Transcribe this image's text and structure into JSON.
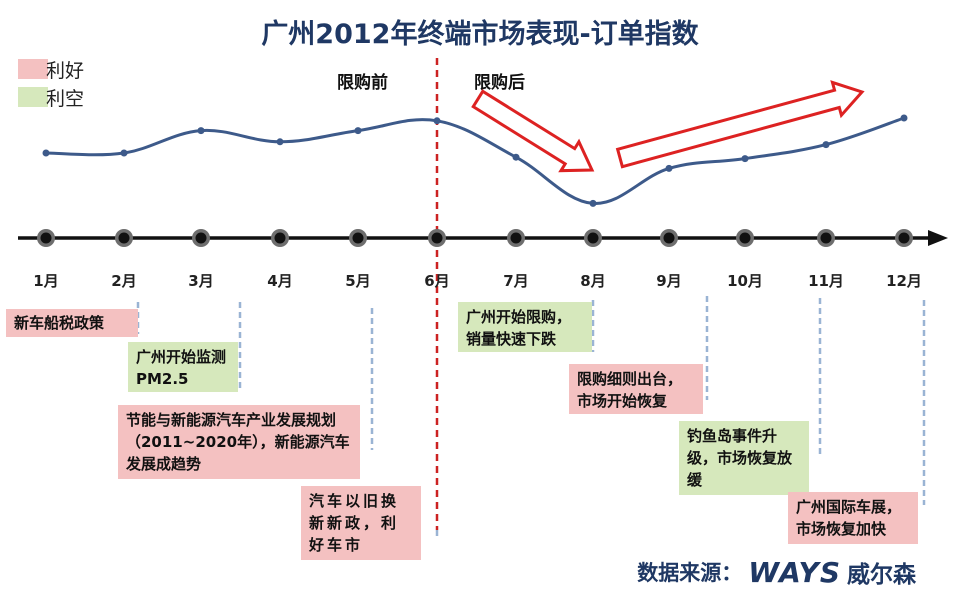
{
  "title": "广州2012年终端市场表现-订单指数",
  "legend": [
    {
      "label": "利好",
      "color": "#f4c1c1"
    },
    {
      "label": "利空",
      "color": "#d6e8bc"
    }
  ],
  "phase_labels": {
    "before": "限购前",
    "after": "限购后"
  },
  "chart_data": {
    "type": "line",
    "title": "广州2012年终端市场表现-订单指数",
    "categories": [
      "1月",
      "2月",
      "3月",
      "4月",
      "5月",
      "6月",
      "7月",
      "8月",
      "9月",
      "10月",
      "11月",
      "12月"
    ],
    "series": [
      {
        "values": [
          55,
          55,
          71,
          63,
          71,
          78,
          52,
          19,
          44,
          51,
          61,
          80
        ]
      }
    ],
    "ylim": [
      0,
      100
    ],
    "divider_after": "6月",
    "grid": false,
    "colors": {
      "line": "#3d5a8a",
      "divider": "#cc2222",
      "axis": "#111111",
      "arrow": "#dd2222",
      "leader": "#9ab4d4"
    }
  },
  "events": [
    {
      "text": "新车船税政策",
      "type": "good"
    },
    {
      "text": "广州开始监测PM2.5",
      "type": "bad"
    },
    {
      "text": "节能与新能源汽车产业发展规划（2011~2020年），新能源汽车发展成趋势",
      "type": "good"
    },
    {
      "text": "汽车以旧换新新政，利好车市",
      "type": "good"
    },
    {
      "text": "广州开始限购，销量快速下跌",
      "type": "bad"
    },
    {
      "text": "限购细则出台，市场开始恢复",
      "type": "good"
    },
    {
      "text": "钓鱼岛事件升级，市场恢复放缓",
      "type": "bad"
    },
    {
      "text": "广州国际车展，市场恢复加快",
      "type": "good"
    }
  ],
  "source": {
    "label": "数据来源：",
    "brand_en": "WAYS",
    "brand_cn": "威尔森"
  }
}
